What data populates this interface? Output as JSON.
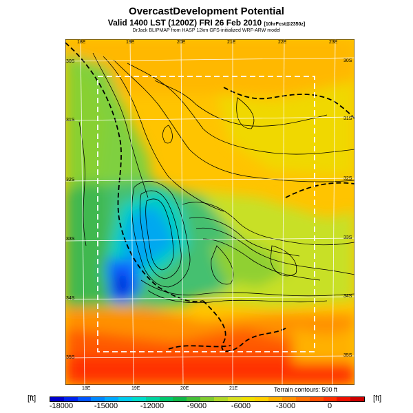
{
  "title": "OvercastDevelopment Potential",
  "subtitle": "Valid 1400 LST (1200Z) FRI 26 Feb 2010",
  "subtitle_note": "[10hrFcst@2350z]",
  "credit": "DrJack BLIPMAP from HASP 12km GFS-initialized WRF-ARW model",
  "terrain_note": "Terrain contours: 500 ft",
  "unit_left": "[ft]",
  "unit_right": "[ft]",
  "lon_labels_top": [
    "18E",
    "19E",
    "20E",
    "21E",
    "22E",
    "23E"
  ],
  "lon_labels_bottom": [
    "18E",
    "19E",
    "20E",
    "21E"
  ],
  "lat_labels_left": [
    "30S",
    "31S",
    "32S",
    "33S",
    "34S",
    "35S"
  ],
  "lat_labels_right": [
    "30S",
    "31S",
    "32S",
    "33S",
    "34S",
    "35S"
  ],
  "colorbar": {
    "ticks": [
      "-18000",
      "-15000",
      "-12000",
      "-9000",
      "-6000",
      "-3000",
      "0"
    ],
    "colors": [
      "#0000cc",
      "#0022ee",
      "#0055ff",
      "#0088ff",
      "#00aaff",
      "#00ccee",
      "#00ddcc",
      "#00d4a0",
      "#00c86e",
      "#10b848",
      "#44c038",
      "#80cc30",
      "#b0d828",
      "#d8e020",
      "#f0e000",
      "#ffd000",
      "#ffb000",
      "#ff9000",
      "#ff7000",
      "#ff5000",
      "#ff3000",
      "#ee1000",
      "#cc0000"
    ]
  }
}
